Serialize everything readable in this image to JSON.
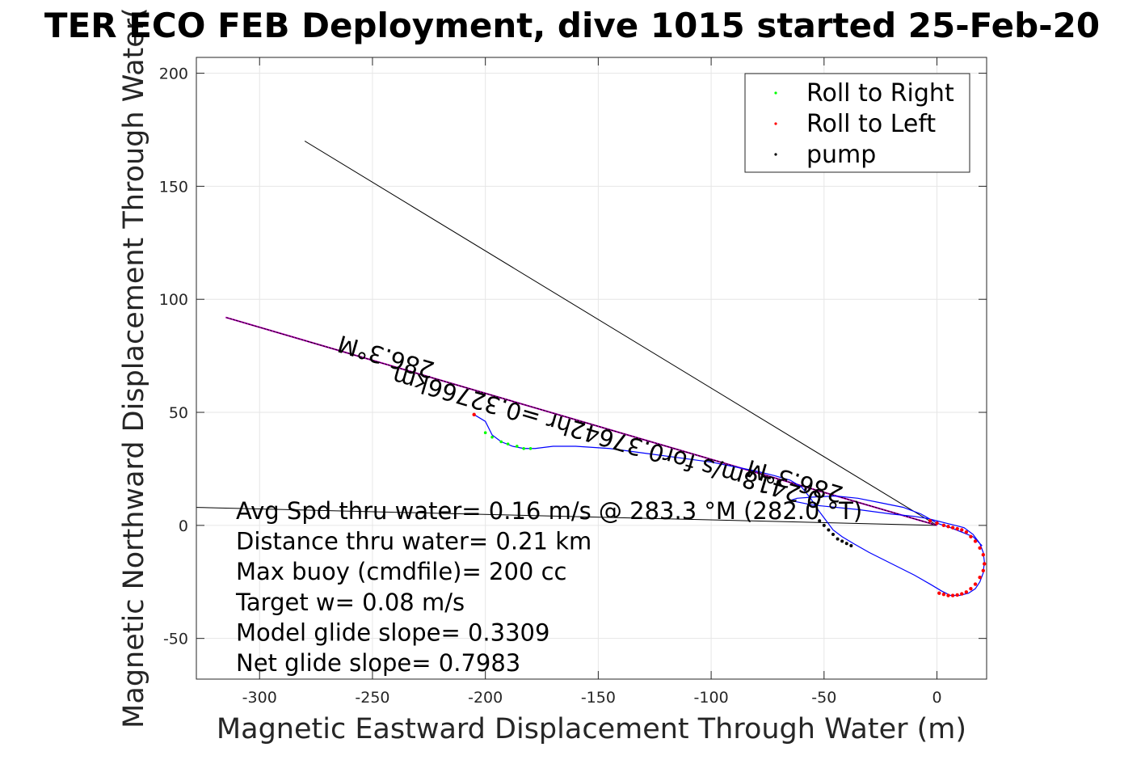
{
  "chart_data": {
    "type": "line",
    "title": "TER ECO FEB Deployment, dive 1015 started 25-Feb-20",
    "xlabel": "Magnetic Eastward Displacement Through Water (m)",
    "ylabel": "Magnetic Northward Displacement Through Water(",
    "xlim": [
      -328,
      22
    ],
    "ylim": [
      -68,
      207
    ],
    "xticks": [
      -300,
      -250,
      -200,
      -150,
      -100,
      -50,
      0
    ],
    "yticks": [
      -50,
      0,
      50,
      100,
      150,
      200
    ],
    "xtick_labels": [
      "-300",
      "-250",
      "-200",
      "-150",
      "-100",
      "-50",
      "0"
    ],
    "ytick_labels": [
      "-50",
      "0",
      "50",
      "100",
      "150",
      "200"
    ],
    "grid": true,
    "legend": {
      "placement": "top-right",
      "entries": [
        {
          "label": "Roll to Right",
          "color": "#00ff00"
        },
        {
          "label": "Roll to Left",
          "color": "#ff0000"
        },
        {
          "label": "pump",
          "color": "#000000"
        }
      ]
    },
    "series": [
      {
        "color": "#0000ff",
        "x": [
          -205,
          -200,
          -197,
          -193,
          -188,
          -183,
          -178,
          -170,
          -160,
          -145,
          -130,
          -115,
          -100,
          -90,
          -80,
          -72,
          -65,
          -60,
          -56,
          -52,
          -49,
          -46,
          -42,
          -37,
          -30,
          -20,
          -10,
          -3,
          2,
          6,
          10,
          14,
          17,
          19,
          20.5,
          21,
          20.5,
          19,
          16,
          12,
          8,
          4,
          0,
          -4,
          -10,
          -20,
          -35,
          -55,
          -65,
          -62,
          -55,
          -45,
          -35,
          -25,
          -15,
          -7,
          0,
          6,
          11,
          16,
          20
        ],
        "y": [
          49,
          46,
          40,
          37,
          35,
          34,
          34,
          35,
          35,
          34,
          32,
          30,
          28,
          26,
          24,
          22,
          20,
          17,
          12,
          6,
          2,
          -2,
          -5,
          -8,
          -12,
          -17,
          -22,
          -26,
          -29,
          -31,
          -31,
          -30,
          -28,
          -25,
          -21,
          -16,
          -12,
          -8,
          -4,
          -1,
          0,
          1,
          2,
          3,
          4,
          5,
          7,
          9,
          11,
          12,
          12.5,
          13,
          12,
          10,
          8,
          5,
          1,
          -1,
          -3,
          -5,
          -9
        ]
      }
    ],
    "reference_lines": [
      {
        "name": "",
        "color": "#000000",
        "x": [
          -280,
          0
        ],
        "y": [
          170,
          0
        ]
      },
      {
        "name": "",
        "color": "#000000",
        "x": [
          -330,
          0
        ],
        "y": [
          8,
          0
        ]
      },
      {
        "name": "",
        "color": "#cc00cc",
        "x": [
          -315,
          0
        ],
        "y": [
          92,
          0
        ]
      },
      {
        "name": "",
        "color": "#000000",
        "x": [
          -315,
          0
        ],
        "y": [
          92,
          0
        ]
      }
    ],
    "line_labels": [
      {
        "text": "286.3°M",
        "x": -243,
        "y": 78,
        "angle_deg": 196.3
      },
      {
        "text": "0.2418m/s for0.37642hr =0.32766km",
        "x": -145,
        "y": 42,
        "angle_deg": 196.3
      },
      {
        "text": "286.3°M",
        "x": -62,
        "y": 23,
        "angle_deg": 196.3
      }
    ],
    "marker_points": {
      "pump": {
        "color": "#000000",
        "x": [
          -52,
          -50,
          -48,
          -46,
          -44,
          -42,
          -40,
          -38
        ],
        "y": [
          2,
          0,
          -2,
          -4,
          -6,
          -7,
          -8,
          -9
        ]
      },
      "roll_left": {
        "color": "#ff0000",
        "x": [
          1,
          3,
          5,
          7,
          9,
          11,
          13,
          15,
          17,
          19,
          20.5,
          21,
          20.5,
          19,
          17,
          15,
          13,
          11,
          9,
          7,
          5,
          3,
          0,
          -3,
          -205
        ],
        "y": [
          -30,
          -30.5,
          -31,
          -31,
          -30.8,
          -30.3,
          -29.5,
          -28,
          -26,
          -23,
          -20,
          -17,
          -13,
          -10,
          -7,
          -5,
          -3,
          -2,
          -1.5,
          -1,
          -0.5,
          0,
          1,
          2,
          49
        ]
      },
      "roll_right": {
        "color": "#00ff00",
        "x": [
          -200,
          -197,
          -193,
          -190,
          -186,
          -183,
          -180
        ],
        "y": [
          41,
          39,
          37,
          36,
          35,
          34,
          34
        ]
      }
    },
    "annotation_lines": [
      "Avg Spd thru water=  0.16 m/s @ 283.3 °M (282.0 °T)",
      "Distance thru water=  0.21 km",
      "Max buoy (cmdfile)= 200 cc",
      "Target w= 0.08 m/s",
      "Model glide slope= 0.3309",
      "Net glide slope= 0.7983"
    ]
  }
}
